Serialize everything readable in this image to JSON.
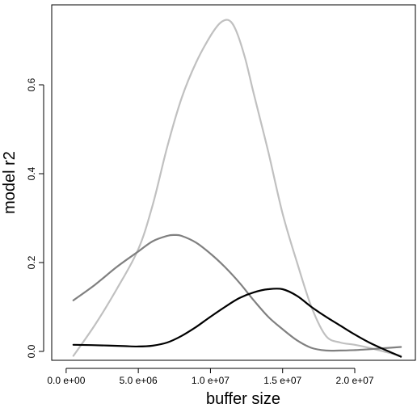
{
  "chart_data": {
    "type": "line",
    "title": "",
    "xlabel": "buffer size",
    "ylabel": "model r2",
    "xlim": [
      -1000000,
      24200000
    ],
    "ylim": [
      -0.02,
      0.78
    ],
    "x_ticks": [
      {
        "value": 0,
        "label": "0.0 e+00"
      },
      {
        "value": 5000000,
        "label": "5.0 e+06"
      },
      {
        "value": 10000000,
        "label": "1.0 e+07"
      },
      {
        "value": 15000000,
        "label": "1.5 e+07"
      },
      {
        "value": 20000000,
        "label": "2.0 e+07"
      }
    ],
    "y_ticks": [
      {
        "value": 0.0,
        "label": "0.0"
      },
      {
        "value": 0.2,
        "label": "0.2"
      },
      {
        "value": 0.4,
        "label": "0.4"
      },
      {
        "value": 0.6,
        "label": "0.6"
      }
    ],
    "grid": false,
    "legend": "none",
    "series": [
      {
        "color": "#c0c0c0",
        "x": [
          500000,
          2000000,
          3500000,
          5000000,
          6000000,
          7000000,
          8000000,
          9000000,
          10000000,
          10700000,
          11300000,
          11800000,
          12400000,
          13000000,
          14000000,
          15000000,
          16000000,
          17000000,
          18000000,
          19000000,
          20000000,
          21000000,
          22000000,
          23200000
        ],
        "values": [
          -0.01,
          0.06,
          0.14,
          0.23,
          0.33,
          0.46,
          0.57,
          0.65,
          0.71,
          0.74,
          0.745,
          0.72,
          0.66,
          0.58,
          0.45,
          0.31,
          0.2,
          0.1,
          0.035,
          0.02,
          0.015,
          0.008,
          0.0,
          -0.01
        ]
      },
      {
        "color": "#808080",
        "x": [
          500000,
          2000000,
          3500000,
          5000000,
          6000000,
          7000000,
          7500000,
          8000000,
          9000000,
          10000000,
          11000000,
          12000000,
          13000000,
          14000000,
          15000000,
          16000000,
          17000000,
          18000000,
          19000000,
          20000000,
          21000000,
          23200000
        ],
        "values": [
          0.115,
          0.15,
          0.19,
          0.225,
          0.248,
          0.26,
          0.262,
          0.26,
          0.245,
          0.22,
          0.19,
          0.155,
          0.115,
          0.078,
          0.05,
          0.025,
          0.008,
          0.002,
          0.002,
          0.003,
          0.005,
          0.01
        ]
      },
      {
        "color": "#000000",
        "x": [
          500000,
          2000000,
          4000000,
          5000000,
          6000000,
          7000000,
          8000000,
          9000000,
          10000000,
          11000000,
          12000000,
          13000000,
          14000000,
          15000000,
          16000000,
          17000000,
          18000000,
          19000000,
          20000000,
          21000000,
          22000000,
          23200000
        ],
        "values": [
          0.015,
          0.014,
          0.012,
          0.011,
          0.013,
          0.02,
          0.035,
          0.055,
          0.078,
          0.1,
          0.12,
          0.133,
          0.14,
          0.14,
          0.125,
          0.1,
          0.078,
          0.058,
          0.038,
          0.02,
          0.005,
          -0.012
        ]
      }
    ]
  }
}
